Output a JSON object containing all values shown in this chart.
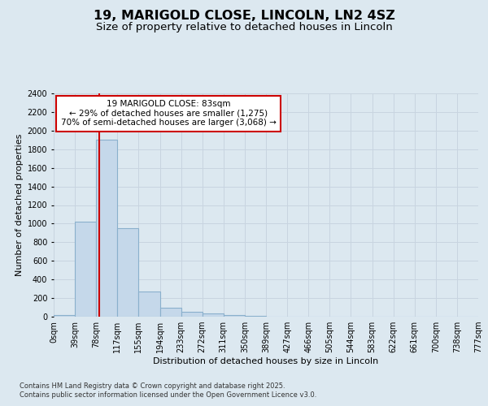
{
  "title1": "19, MARIGOLD CLOSE, LINCOLN, LN2 4SZ",
  "title2": "Size of property relative to detached houses in Lincoln",
  "xlabel": "Distribution of detached houses by size in Lincoln",
  "ylabel": "Number of detached properties",
  "annotation_line1": "19 MARIGOLD CLOSE: 83sqm",
  "annotation_line2": "← 29% of detached houses are smaller (1,275)",
  "annotation_line3": "70% of semi-detached houses are larger (3,068) →",
  "property_size": 83,
  "bin_edges": [
    0,
    39,
    78,
    117,
    155,
    194,
    233,
    272,
    311,
    350,
    389,
    427,
    466,
    505,
    544,
    583,
    622,
    661,
    700,
    738,
    777
  ],
  "bin_labels": [
    "0sqm",
    "39sqm",
    "78sqm",
    "117sqm",
    "155sqm",
    "194sqm",
    "233sqm",
    "272sqm",
    "311sqm",
    "350sqm",
    "389sqm",
    "427sqm",
    "466sqm",
    "505sqm",
    "544sqm",
    "583sqm",
    "622sqm",
    "661sqm",
    "700sqm",
    "738sqm",
    "777sqm"
  ],
  "bar_heights": [
    20,
    1025,
    1900,
    950,
    270,
    100,
    55,
    35,
    15,
    5,
    2,
    1,
    0,
    0,
    0,
    0,
    0,
    0,
    0,
    0
  ],
  "bar_color": "#c5d8ea",
  "bar_edgecolor": "#8ab0cc",
  "bar_linewidth": 0.8,
  "grid_color": "#c8d4e0",
  "background_color": "#dce8f0",
  "vline_color": "#cc0000",
  "vline_x": 83,
  "ylim": [
    0,
    2400
  ],
  "yticks": [
    0,
    200,
    400,
    600,
    800,
    1000,
    1200,
    1400,
    1600,
    1800,
    2000,
    2200,
    2400
  ],
  "annotation_box_color": "#ffffff",
  "annotation_border_color": "#cc0000",
  "footer1": "Contains HM Land Registry data © Crown copyright and database right 2025.",
  "footer2": "Contains public sector information licensed under the Open Government Licence v3.0.",
  "title_fontsize": 11.5,
  "subtitle_fontsize": 9.5,
  "axis_label_fontsize": 8,
  "tick_fontsize": 7,
  "annotation_fontsize": 7.5,
  "footer_fontsize": 6
}
